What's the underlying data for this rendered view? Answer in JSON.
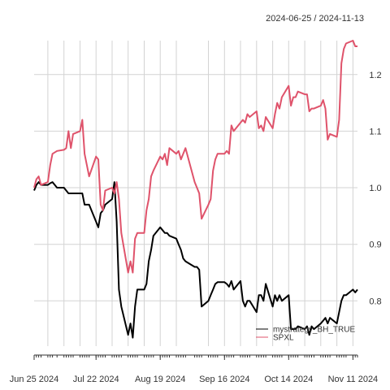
{
  "chart_data": {
    "type": "line",
    "date_range_label": "2024-06-25 / 2024-11-13",
    "x_range": [
      "2024-06-25",
      "2024-11-13"
    ],
    "ylim": [
      0.72,
      1.26
    ],
    "y_ticks": [
      0.8,
      0.9,
      1.0,
      1.1,
      1.2
    ],
    "y_tick_labels": [
      "0.8",
      "0.9",
      "1.0",
      "1.1",
      "1.2"
    ],
    "x_tick_labels": [
      {
        "date": "2024-06-25",
        "label": "Jun 25 2024"
      },
      {
        "date": "2024-07-22",
        "label": "Jul 22 2024"
      },
      {
        "date": "2024-08-19",
        "label": "Aug 19 2024"
      },
      {
        "date": "2024-09-16",
        "label": "Sep 16 2024"
      },
      {
        "date": "2024-10-14",
        "label": "Oct 14 2024"
      },
      {
        "date": "2024-11-11",
        "label": "Nov 11 2024"
      }
    ],
    "grid": true,
    "legend_position": "bottom-right",
    "series": [
      {
        "name": "mystrategy_BH_TRUE",
        "color": "#000000",
        "points": [
          [
            "2024-06-25",
            0.995
          ],
          [
            "2024-06-26",
            1.005
          ],
          [
            "2024-06-27",
            1.01
          ],
          [
            "2024-06-28",
            1.005
          ],
          [
            "2024-07-01",
            1.005
          ],
          [
            "2024-07-02",
            1.008
          ],
          [
            "2024-07-03",
            1.01
          ],
          [
            "2024-07-05",
            1.0
          ],
          [
            "2024-07-08",
            1.0
          ],
          [
            "2024-07-09",
            0.995
          ],
          [
            "2024-07-10",
            0.99
          ],
          [
            "2024-07-11",
            0.99
          ],
          [
            "2024-07-12",
            0.99
          ],
          [
            "2024-07-15",
            0.99
          ],
          [
            "2024-07-16",
            0.99
          ],
          [
            "2024-07-17",
            0.97
          ],
          [
            "2024-07-18",
            0.97
          ],
          [
            "2024-07-19",
            0.97
          ],
          [
            "2024-07-22",
            0.94
          ],
          [
            "2024-07-23",
            0.93
          ],
          [
            "2024-07-24",
            0.955
          ],
          [
            "2024-07-25",
            0.96
          ],
          [
            "2024-07-26",
            0.97
          ],
          [
            "2024-07-29",
            0.98
          ],
          [
            "2024-07-30",
            1.01
          ],
          [
            "2024-07-31",
            0.94
          ],
          [
            "2024-08-01",
            0.82
          ],
          [
            "2024-08-02",
            0.79
          ],
          [
            "2024-08-05",
            0.74
          ],
          [
            "2024-08-06",
            0.76
          ],
          [
            "2024-08-07",
            0.735
          ],
          [
            "2024-08-08",
            0.79
          ],
          [
            "2024-08-09",
            0.82
          ],
          [
            "2024-08-12",
            0.82
          ],
          [
            "2024-08-13",
            0.83
          ],
          [
            "2024-08-14",
            0.87
          ],
          [
            "2024-08-15",
            0.89
          ],
          [
            "2024-08-16",
            0.915
          ],
          [
            "2024-08-19",
            0.93
          ],
          [
            "2024-08-20",
            0.925
          ],
          [
            "2024-08-21",
            0.92
          ],
          [
            "2024-08-22",
            0.92
          ],
          [
            "2024-08-23",
            0.915
          ],
          [
            "2024-08-26",
            0.91
          ],
          [
            "2024-08-27",
            0.9
          ],
          [
            "2024-08-28",
            0.89
          ],
          [
            "2024-08-29",
            0.875
          ],
          [
            "2024-08-30",
            0.87
          ],
          [
            "2024-09-03",
            0.86
          ],
          [
            "2024-09-04",
            0.86
          ],
          [
            "2024-09-05",
            0.855
          ],
          [
            "2024-09-06",
            0.79
          ],
          [
            "2024-09-09",
            0.8
          ],
          [
            "2024-09-10",
            0.81
          ],
          [
            "2024-09-11",
            0.82
          ],
          [
            "2024-09-12",
            0.83
          ],
          [
            "2024-09-13",
            0.833
          ],
          [
            "2024-09-16",
            0.833
          ],
          [
            "2024-09-17",
            0.83
          ],
          [
            "2024-09-18",
            0.825
          ],
          [
            "2024-09-19",
            0.835
          ],
          [
            "2024-09-20",
            0.82
          ],
          [
            "2024-09-23",
            0.835
          ],
          [
            "2024-09-24",
            0.8
          ],
          [
            "2024-09-25",
            0.79
          ],
          [
            "2024-09-26",
            0.8
          ],
          [
            "2024-09-27",
            0.8
          ],
          [
            "2024-09-30",
            0.78
          ],
          [
            "2024-10-01",
            0.81
          ],
          [
            "2024-10-02",
            0.81
          ],
          [
            "2024-10-03",
            0.8
          ],
          [
            "2024-10-04",
            0.83
          ],
          [
            "2024-10-07",
            0.79
          ],
          [
            "2024-10-08",
            0.81
          ],
          [
            "2024-10-09",
            0.8
          ],
          [
            "2024-10-10",
            0.81
          ],
          [
            "2024-10-11",
            0.8
          ],
          [
            "2024-10-14",
            0.81
          ],
          [
            "2024-10-15",
            0.75
          ],
          [
            "2024-10-16",
            0.75
          ],
          [
            "2024-10-17",
            0.75
          ],
          [
            "2024-10-18",
            0.755
          ],
          [
            "2024-10-21",
            0.75
          ],
          [
            "2024-10-22",
            0.755
          ],
          [
            "2024-10-23",
            0.74
          ],
          [
            "2024-10-24",
            0.755
          ],
          [
            "2024-10-25",
            0.75
          ],
          [
            "2024-10-28",
            0.76
          ],
          [
            "2024-10-29",
            0.765
          ],
          [
            "2024-10-30",
            0.77
          ],
          [
            "2024-10-31",
            0.76
          ],
          [
            "2024-11-01",
            0.77
          ],
          [
            "2024-11-04",
            0.76
          ],
          [
            "2024-11-05",
            0.78
          ],
          [
            "2024-11-06",
            0.8
          ],
          [
            "2024-11-07",
            0.81
          ],
          [
            "2024-11-08",
            0.81
          ],
          [
            "2024-11-11",
            0.82
          ],
          [
            "2024-11-12",
            0.815
          ],
          [
            "2024-11-13",
            0.82
          ]
        ]
      },
      {
        "name": "SPXL",
        "color": "#DF536B",
        "points": [
          [
            "2024-06-25",
            1.0
          ],
          [
            "2024-06-26",
            1.015
          ],
          [
            "2024-06-27",
            1.02
          ],
          [
            "2024-06-28",
            1.005
          ],
          [
            "2024-07-01",
            1.01
          ],
          [
            "2024-07-02",
            1.04
          ],
          [
            "2024-07-03",
            1.06
          ],
          [
            "2024-07-05",
            1.065
          ],
          [
            "2024-07-08",
            1.067
          ],
          [
            "2024-07-09",
            1.07
          ],
          [
            "2024-07-10",
            1.1
          ],
          [
            "2024-07-11",
            1.07
          ],
          [
            "2024-07-12",
            1.095
          ],
          [
            "2024-07-15",
            1.1
          ],
          [
            "2024-07-16",
            1.12
          ],
          [
            "2024-07-17",
            1.06
          ],
          [
            "2024-07-18",
            1.04
          ],
          [
            "2024-07-19",
            1.02
          ],
          [
            "2024-07-22",
            1.055
          ],
          [
            "2024-07-23",
            1.05
          ],
          [
            "2024-07-24",
            0.97
          ],
          [
            "2024-07-25",
            0.96
          ],
          [
            "2024-07-26",
            0.995
          ],
          [
            "2024-07-29",
            1.0
          ],
          [
            "2024-07-30",
            0.99
          ],
          [
            "2024-07-31",
            1.01
          ],
          [
            "2024-08-01",
            0.98
          ],
          [
            "2024-08-02",
            0.92
          ],
          [
            "2024-08-05",
            0.85
          ],
          [
            "2024-08-06",
            0.87
          ],
          [
            "2024-08-07",
            0.85
          ],
          [
            "2024-08-08",
            0.91
          ],
          [
            "2024-08-09",
            0.92
          ],
          [
            "2024-08-12",
            0.92
          ],
          [
            "2024-08-13",
            0.96
          ],
          [
            "2024-08-14",
            0.98
          ],
          [
            "2024-08-15",
            1.02
          ],
          [
            "2024-08-16",
            1.03
          ],
          [
            "2024-08-19",
            1.055
          ],
          [
            "2024-08-20",
            1.05
          ],
          [
            "2024-08-21",
            1.06
          ],
          [
            "2024-08-22",
            1.04
          ],
          [
            "2024-08-23",
            1.07
          ],
          [
            "2024-08-26",
            1.06
          ],
          [
            "2024-08-27",
            1.065
          ],
          [
            "2024-08-28",
            1.05
          ],
          [
            "2024-08-29",
            1.06
          ],
          [
            "2024-08-30",
            1.07
          ],
          [
            "2024-09-03",
            1.01
          ],
          [
            "2024-09-04",
            1.0
          ],
          [
            "2024-09-05",
            0.99
          ],
          [
            "2024-09-06",
            0.945
          ],
          [
            "2024-09-09",
            0.97
          ],
          [
            "2024-09-10",
            0.98
          ],
          [
            "2024-09-11",
            1.03
          ],
          [
            "2024-09-12",
            1.05
          ],
          [
            "2024-09-13",
            1.06
          ],
          [
            "2024-09-16",
            1.06
          ],
          [
            "2024-09-17",
            1.065
          ],
          [
            "2024-09-18",
            1.06
          ],
          [
            "2024-09-19",
            1.11
          ],
          [
            "2024-09-20",
            1.1
          ],
          [
            "2024-09-23",
            1.115
          ],
          [
            "2024-09-24",
            1.12
          ],
          [
            "2024-09-25",
            1.115
          ],
          [
            "2024-09-26",
            1.13
          ],
          [
            "2024-09-27",
            1.125
          ],
          [
            "2024-09-30",
            1.135
          ],
          [
            "2024-10-01",
            1.105
          ],
          [
            "2024-10-02",
            1.11
          ],
          [
            "2024-10-03",
            1.1
          ],
          [
            "2024-10-04",
            1.125
          ],
          [
            "2024-10-07",
            1.105
          ],
          [
            "2024-10-08",
            1.13
          ],
          [
            "2024-10-09",
            1.15
          ],
          [
            "2024-10-10",
            1.14
          ],
          [
            "2024-10-11",
            1.16
          ],
          [
            "2024-10-14",
            1.18
          ],
          [
            "2024-10-15",
            1.145
          ],
          [
            "2024-10-16",
            1.16
          ],
          [
            "2024-10-17",
            1.16
          ],
          [
            "2024-10-18",
            1.17
          ],
          [
            "2024-10-21",
            1.165
          ],
          [
            "2024-10-22",
            1.165
          ],
          [
            "2024-10-23",
            1.135
          ],
          [
            "2024-10-24",
            1.14
          ],
          [
            "2024-10-25",
            1.14
          ],
          [
            "2024-10-28",
            1.145
          ],
          [
            "2024-10-29",
            1.155
          ],
          [
            "2024-10-30",
            1.14
          ],
          [
            "2024-10-31",
            1.085
          ],
          [
            "2024-11-01",
            1.095
          ],
          [
            "2024-11-04",
            1.09
          ],
          [
            "2024-11-05",
            1.12
          ],
          [
            "2024-11-06",
            1.22
          ],
          [
            "2024-11-07",
            1.245
          ],
          [
            "2024-11-08",
            1.255
          ],
          [
            "2024-11-11",
            1.26
          ],
          [
            "2024-11-12",
            1.25
          ],
          [
            "2024-11-13",
            1.25
          ]
        ]
      }
    ]
  }
}
